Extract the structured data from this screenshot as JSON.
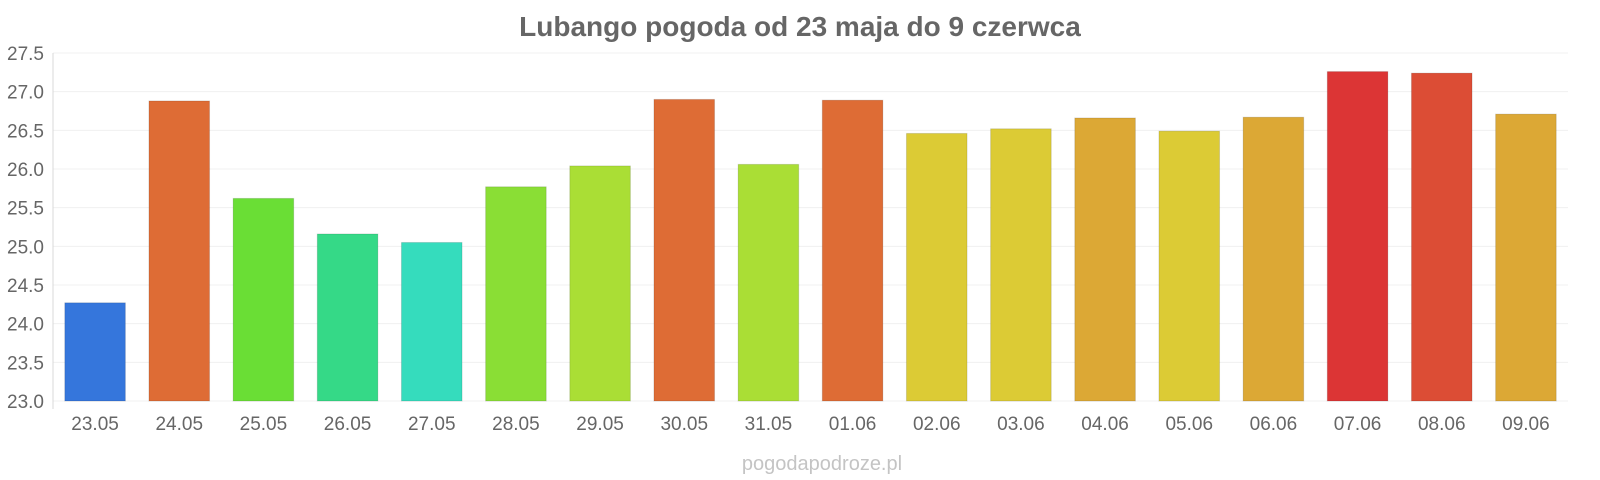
{
  "chart_data": {
    "type": "bar",
    "title": "Lubango pogoda od 23 maja do 9 czerwca",
    "xlabel": "",
    "ylabel": "",
    "ylim": [
      23.0,
      27.5
    ],
    "yticks": [
      "23.0",
      "23.5",
      "24.0",
      "24.5",
      "25.0",
      "25.5",
      "26.0",
      "26.5",
      "27.0",
      "27.5"
    ],
    "grid": true,
    "legend": "none",
    "categories": [
      "23.05",
      "24.05",
      "25.05",
      "26.05",
      "27.05",
      "28.05",
      "29.05",
      "30.05",
      "31.05",
      "01.06",
      "02.06",
      "03.06",
      "04.06",
      "05.06",
      "06.06",
      "07.06",
      "08.06",
      "09.06"
    ],
    "values": [
      24.27,
      26.88,
      25.62,
      25.16,
      25.05,
      25.77,
      26.04,
      26.9,
      26.06,
      26.89,
      26.46,
      26.52,
      26.66,
      26.49,
      26.67,
      27.26,
      27.24,
      26.71
    ],
    "colors": [
      "#3576dc",
      "#de6c35",
      "#6ade35",
      "#35d987",
      "#35dcbd",
      "#8ade35",
      "#aade35",
      "#de6c35",
      "#aade35",
      "#de6c35",
      "#dccb35",
      "#dccb35",
      "#dca835",
      "#dccb35",
      "#dca835",
      "#dc3535",
      "#dc4d35",
      "#dca835"
    ],
    "watermark": "pogodapodroze.pl"
  }
}
